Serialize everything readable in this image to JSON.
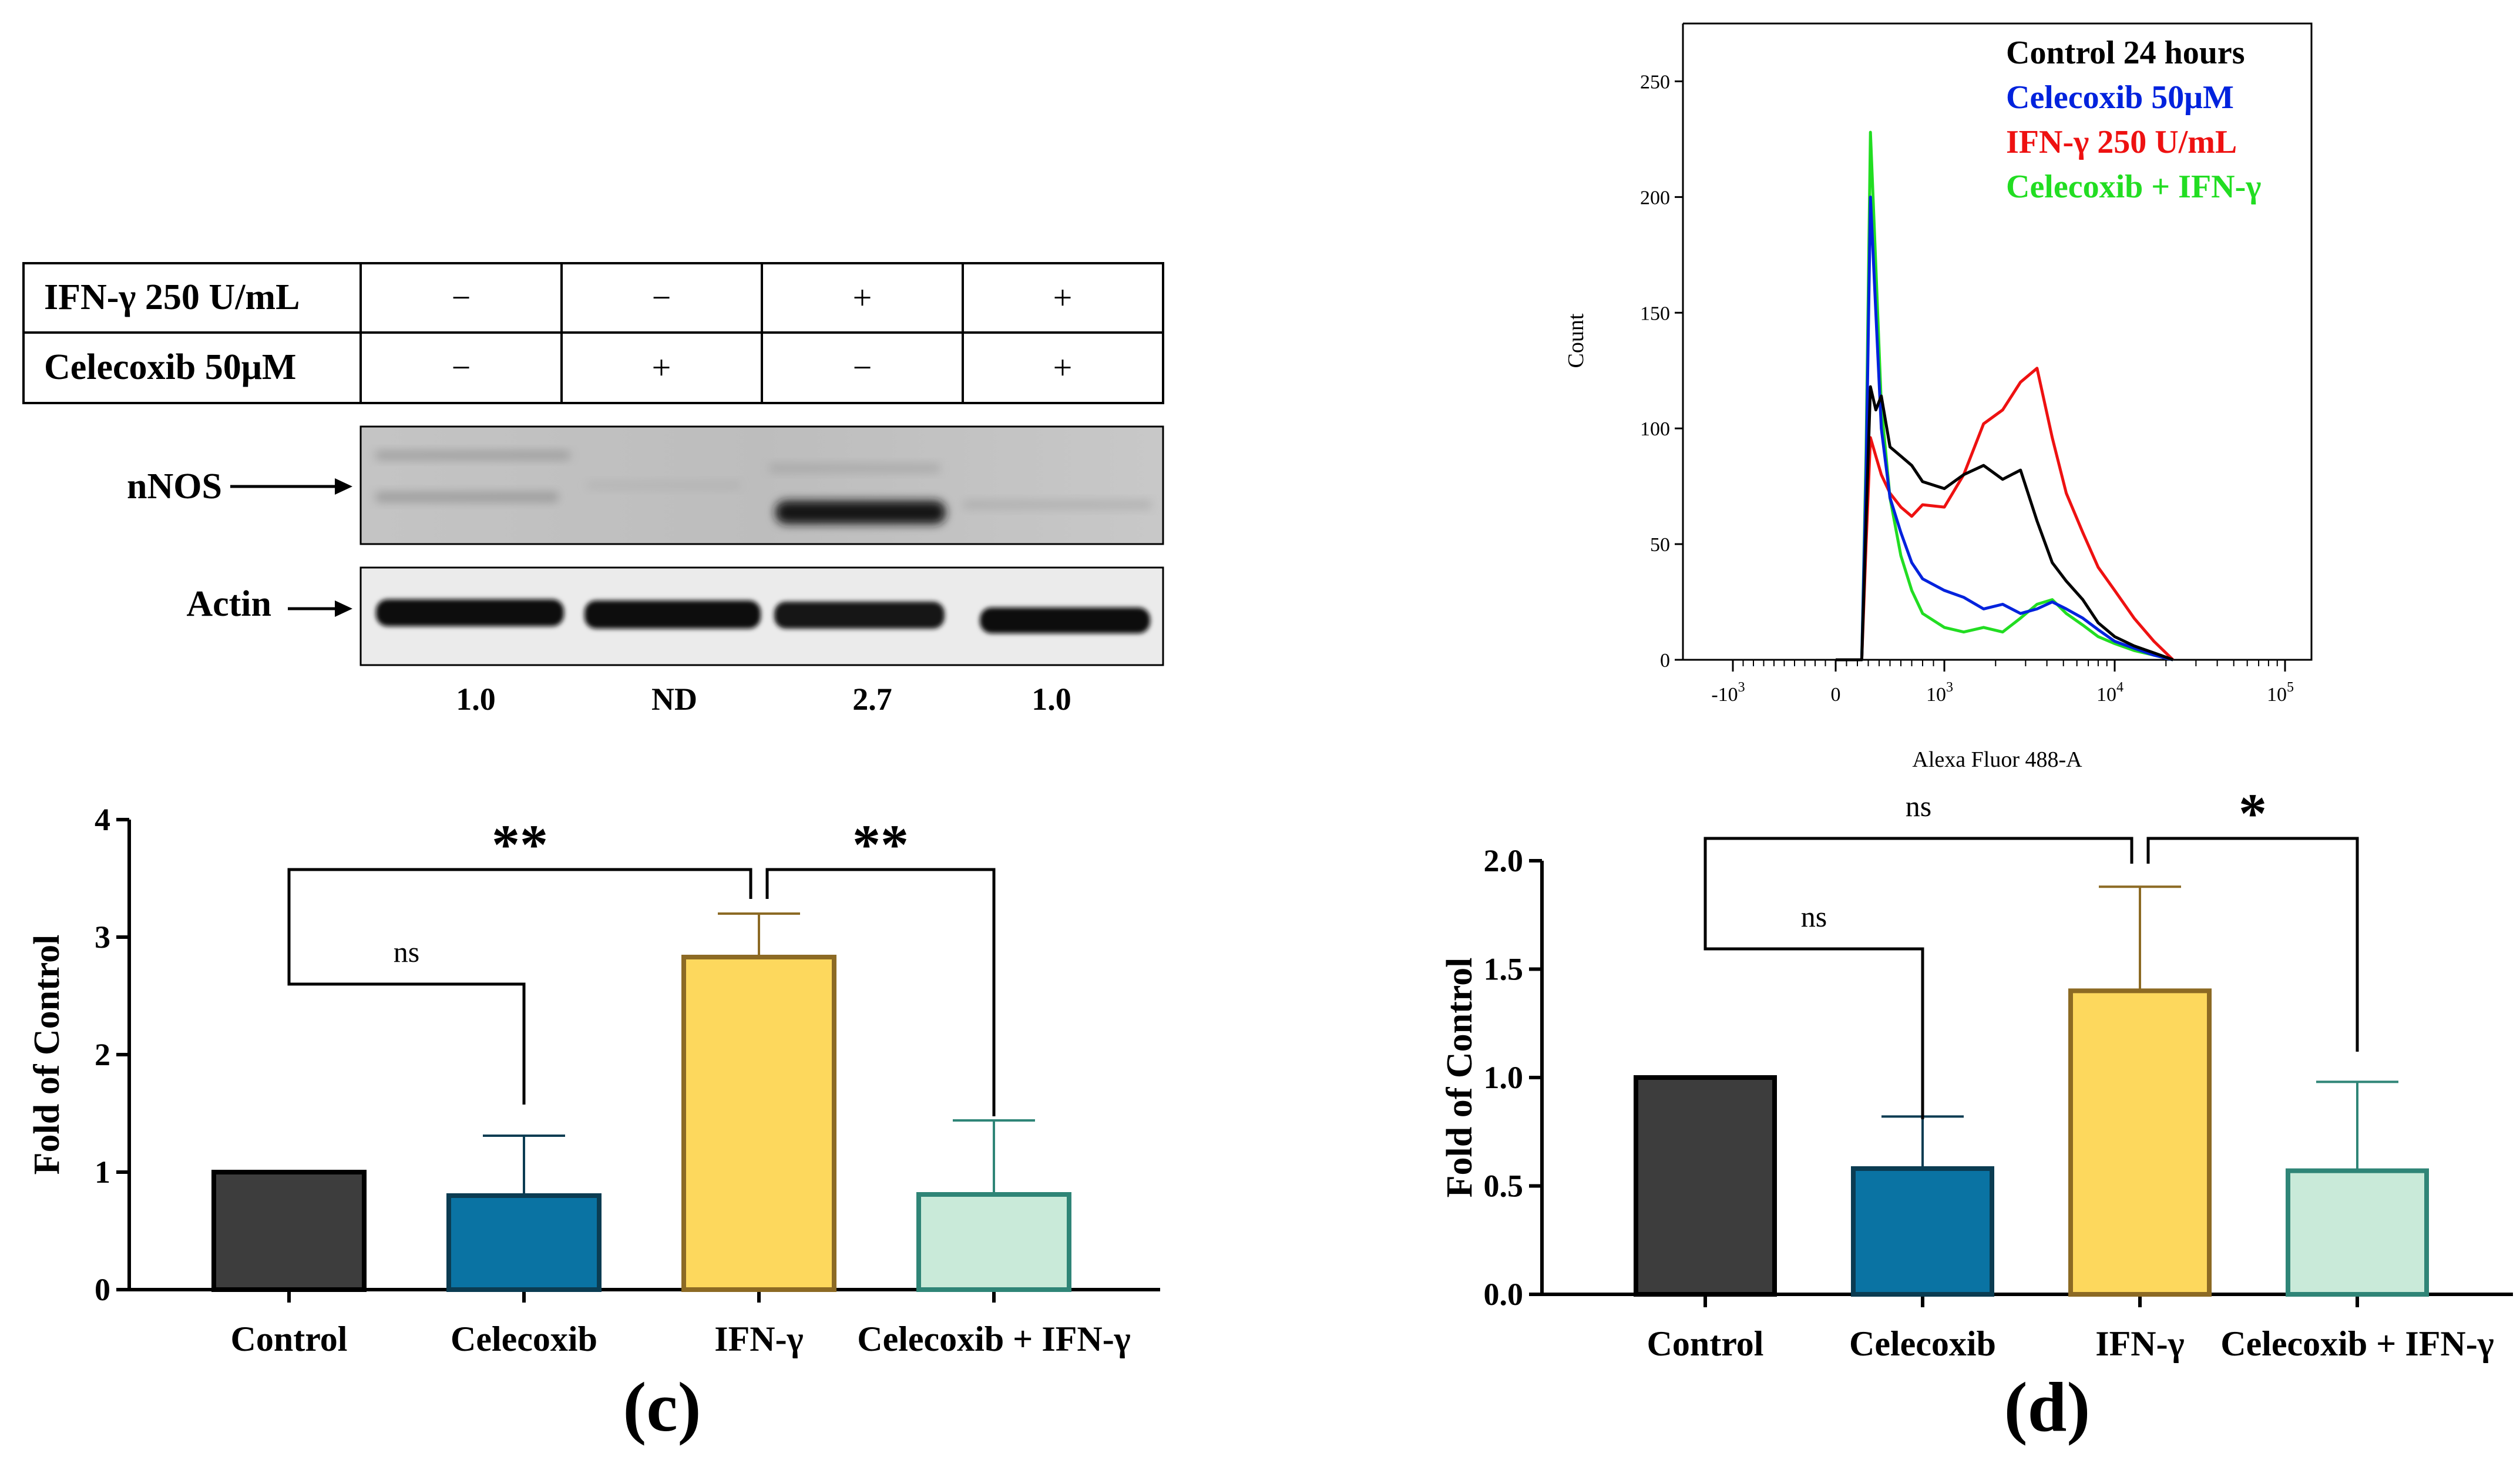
{
  "blot": {
    "treatment_table": {
      "rows": [
        {
          "label": "IFN-γ 250 U/mL",
          "cells": [
            "−",
            "−",
            "+",
            "+"
          ]
        },
        {
          "label": "Celecoxib 50μM",
          "cells": [
            "−",
            "+",
            "−",
            "+"
          ]
        }
      ]
    },
    "band_labels": {
      "nNOS": "nNOS",
      "actin": "Actin"
    },
    "quant_values": [
      "1.0",
      "ND",
      "2.7",
      "1.0"
    ]
  },
  "chart_data": [
    {
      "type": "bar",
      "panel_label": "(c)",
      "ylabel": "Fold of Control",
      "xlabel": "",
      "categories": [
        "Control",
        "Celecoxib",
        "IFN-γ",
        "Celecoxib + IFN-γ"
      ],
      "values": [
        1.0,
        0.8,
        2.83,
        0.81
      ],
      "errors": [
        0,
        0.51,
        0.37,
        0.63
      ],
      "colors": [
        "#3d3d3d",
        "#0a73a3",
        "#fdd85d",
        "#c9ead9"
      ],
      "edge_colors": [
        "#000000",
        "#0b3c52",
        "#8c6a24",
        "#2f8577"
      ],
      "yticks": [
        "0",
        "1",
        "2",
        "3",
        "4"
      ],
      "ylim": [
        0,
        4
      ],
      "comparisons": [
        {
          "from": 0,
          "to": 1,
          "label": "ns"
        },
        {
          "from": 0,
          "to": 2,
          "label": "**"
        },
        {
          "from": 2,
          "to": 3,
          "label": "**"
        }
      ]
    },
    {
      "type": "bar",
      "panel_label": "(d)",
      "ylabel": "Fold of Control",
      "xlabel": "",
      "categories": [
        "Control",
        "Celecoxib",
        "IFN-γ",
        "Celecoxib + IFN-γ"
      ],
      "values": [
        1.0,
        0.58,
        1.4,
        0.57
      ],
      "errors": [
        0,
        0.24,
        0.48,
        0.41
      ],
      "colors": [
        "#3d3d3d",
        "#0a73a3",
        "#fdd85d",
        "#c9ead9"
      ],
      "edge_colors": [
        "#000000",
        "#0b3c52",
        "#8c6a24",
        "#2f8577"
      ],
      "yticks": [
        "0.0",
        "0.5",
        "1.0",
        "1.5",
        "2.0"
      ],
      "ylim": [
        0,
        2
      ],
      "comparisons": [
        {
          "from": 0,
          "to": 1,
          "label": "ns"
        },
        {
          "from": 0,
          "to": 2,
          "label": "ns"
        },
        {
          "from": 2,
          "to": 3,
          "label": "*"
        }
      ]
    },
    {
      "type": "line",
      "title": "",
      "xlabel": "Alexa Fluor 488-A",
      "ylabel": "Count",
      "yticks": [
        "0",
        "50",
        "100",
        "150",
        "200",
        "250"
      ],
      "ylim": [
        0,
        275
      ],
      "xticks": [
        "-10^3",
        "0",
        "10^3",
        "10^4",
        "10^5"
      ],
      "xscale": "biexponential",
      "legend_position": "top-right",
      "series": [
        {
          "name": "Control 24 hours",
          "color": "#000000",
          "x": [
            0,
            240,
            280,
            320,
            370,
            420,
            500,
            600,
            700,
            800,
            1000,
            1300,
            1700,
            2200,
            2800,
            3500,
            4300,
            5200,
            6500,
            8000,
            10000,
            13000,
            17000,
            22000
          ],
          "y": [
            0,
            0,
            60,
            118,
            108,
            114,
            92,
            88,
            84,
            77,
            74,
            80,
            84,
            78,
            82,
            60,
            42,
            34,
            26,
            16,
            10,
            6,
            3,
            0
          ]
        },
        {
          "name": "Celecoxib 50μM",
          "color": "#0022dd",
          "x": [
            0,
            240,
            280,
            320,
            370,
            420,
            500,
            600,
            700,
            800,
            1000,
            1300,
            1700,
            2200,
            2800,
            3500,
            4300,
            5200,
            6500,
            8000,
            10000,
            13000,
            17000,
            22000
          ],
          "y": [
            0,
            0,
            80,
            200,
            150,
            100,
            70,
            55,
            42,
            35,
            30,
            27,
            22,
            24,
            20,
            22,
            25,
            22,
            18,
            13,
            8,
            5,
            2,
            0
          ]
        },
        {
          "name": "IFN-γ 250 U/mL",
          "color": "#ee1111",
          "x": [
            0,
            240,
            280,
            320,
            370,
            420,
            500,
            600,
            700,
            800,
            1000,
            1300,
            1700,
            2200,
            2800,
            3500,
            4300,
            5200,
            6500,
            8000,
            10000,
            13000,
            17000,
            22000
          ],
          "y": [
            0,
            0,
            50,
            96,
            88,
            80,
            72,
            66,
            62,
            67,
            66,
            80,
            102,
            108,
            120,
            126,
            96,
            72,
            55,
            40,
            30,
            18,
            8,
            0
          ]
        },
        {
          "name": "Celecoxib + IFN-γ",
          "color": "#22dd22",
          "x": [
            0,
            240,
            280,
            320,
            370,
            420,
            500,
            600,
            700,
            800,
            1000,
            1300,
            1700,
            2200,
            2800,
            3500,
            4300,
            5200,
            6500,
            8000,
            10000,
            13000,
            17000,
            22000
          ],
          "y": [
            0,
            0,
            90,
            228,
            170,
            110,
            70,
            45,
            30,
            20,
            14,
            12,
            14,
            12,
            18,
            24,
            26,
            20,
            15,
            10,
            7,
            4,
            2,
            0
          ]
        }
      ]
    }
  ]
}
